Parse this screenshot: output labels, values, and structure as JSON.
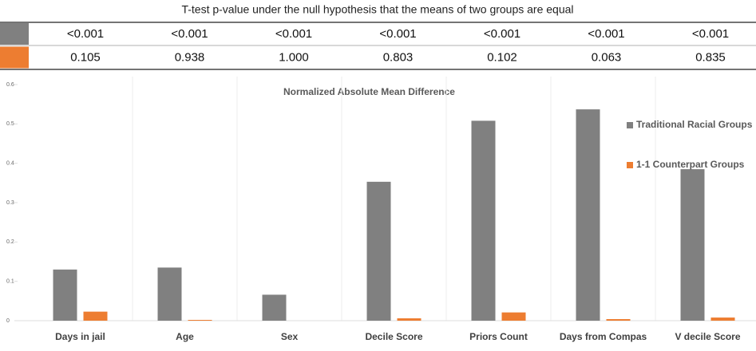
{
  "table": {
    "title": "T-test p-value under the null hypothesis that the means of two groups are equal",
    "rows": [
      {
        "color": "#808080",
        "cells": [
          "<0.001",
          "<0.001",
          "<0.001",
          "<0.001",
          "<0.001",
          "<0.001",
          "<0.001"
        ]
      },
      {
        "color": "#ed7d31",
        "cells": [
          "0.105",
          "0.938",
          "1.000",
          "0.803",
          "0.102",
          "0.063",
          "0.835"
        ]
      }
    ]
  },
  "chart_data": {
    "type": "bar",
    "title": "Normalized Absolute Mean Difference",
    "categories": [
      "Days in jail",
      "Age",
      "Sex",
      "Decile Score",
      "Priors Count",
      "Days from Compas",
      "V decile Score"
    ],
    "series": [
      {
        "name": "Traditional Racial Groups",
        "color": "#808080",
        "values": [
          0.13,
          0.135,
          0.066,
          0.353,
          0.508,
          0.537,
          0.385
        ]
      },
      {
        "name": "1-1 Counterpart Groups",
        "color": "#ed7d31",
        "values": [
          0.023,
          0.002,
          0,
          0.006,
          0.021,
          0.004,
          0.008
        ]
      }
    ],
    "ylim": [
      0,
      0.6
    ],
    "yticks": [
      0,
      0.1,
      0.2,
      0.3,
      0.4,
      0.5,
      0.6
    ],
    "legend": "right"
  }
}
